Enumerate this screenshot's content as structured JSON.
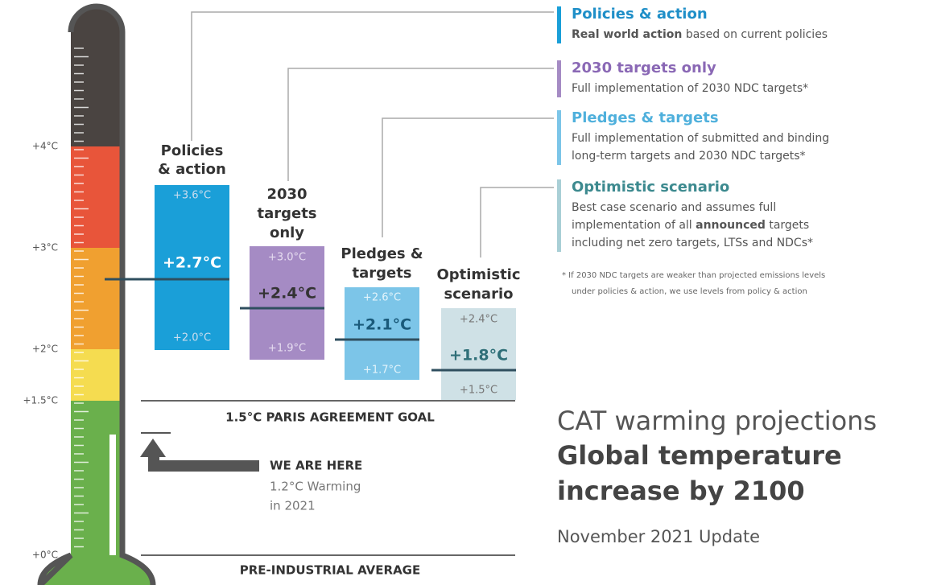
{
  "scale": {
    "ticks": [
      "+4°C",
      "+3°C",
      "+2°C",
      "+1.5°C",
      "+0°C"
    ]
  },
  "scenarios": [
    {
      "label_lines": [
        "Policies",
        "& action"
      ],
      "high": "+3.6°C",
      "mid": "+2.7°C",
      "low": "+2.0°C"
    },
    {
      "label_lines": [
        "2030",
        "targets",
        "only"
      ],
      "high": "+3.0°C",
      "mid": "+2.4°C",
      "low": "+1.9°C"
    },
    {
      "label_lines": [
        "Pledges &",
        "targets"
      ],
      "high": "+2.6°C",
      "mid": "+2.1°C",
      "low": "+1.7°C"
    },
    {
      "label_lines": [
        "Optimistic",
        "scenario"
      ],
      "high": "+2.4°C",
      "mid": "+1.8°C",
      "low": "+1.5°C"
    }
  ],
  "legend": [
    {
      "title": "Policies & action",
      "lines": [
        [
          {
            "text": "Real world action",
            "bold": true
          },
          {
            "text": " based on current policies",
            "bold": false
          }
        ]
      ]
    },
    {
      "title": "2030 targets only",
      "lines": [
        [
          {
            "text": "Full implementation of 2030 NDC targets*",
            "bold": false
          }
        ]
      ]
    },
    {
      "title": "Pledges & targets",
      "lines": [
        [
          {
            "text": "Full implementation of submitted and binding",
            "bold": false
          }
        ],
        [
          {
            "text": "long-term targets and 2030 NDC targets*",
            "bold": false
          }
        ]
      ]
    },
    {
      "title": "Optimistic scenario",
      "lines": [
        [
          {
            "text": "Best case scenario and assumes full",
            "bold": false
          }
        ],
        [
          {
            "text": "implementation of all ",
            "bold": false
          },
          {
            "text": "announced",
            "bold": true
          },
          {
            "text": " targets",
            "bold": false
          }
        ],
        [
          {
            "text": "including net zero targets, LTSs and NDCs*",
            "bold": false
          }
        ]
      ]
    }
  ],
  "footnote": [
    "* If 2030 NDC targets are weaker than projected emissions levels",
    "under policies & action, we use levels from policy & action"
  ],
  "paris_goal": "1.5°C PARIS AGREEMENT GOAL",
  "pre_industrial": "PRE-INDUSTRIAL AVERAGE",
  "we_are_here": {
    "title": "WE ARE HERE",
    "lines": [
      "1.2°C Warming",
      "in 2021"
    ]
  },
  "title": {
    "line1": "CAT warming projections",
    "line2": "Global temperature",
    "line3": "increase by 2100",
    "update": "November 2021 Update"
  }
}
